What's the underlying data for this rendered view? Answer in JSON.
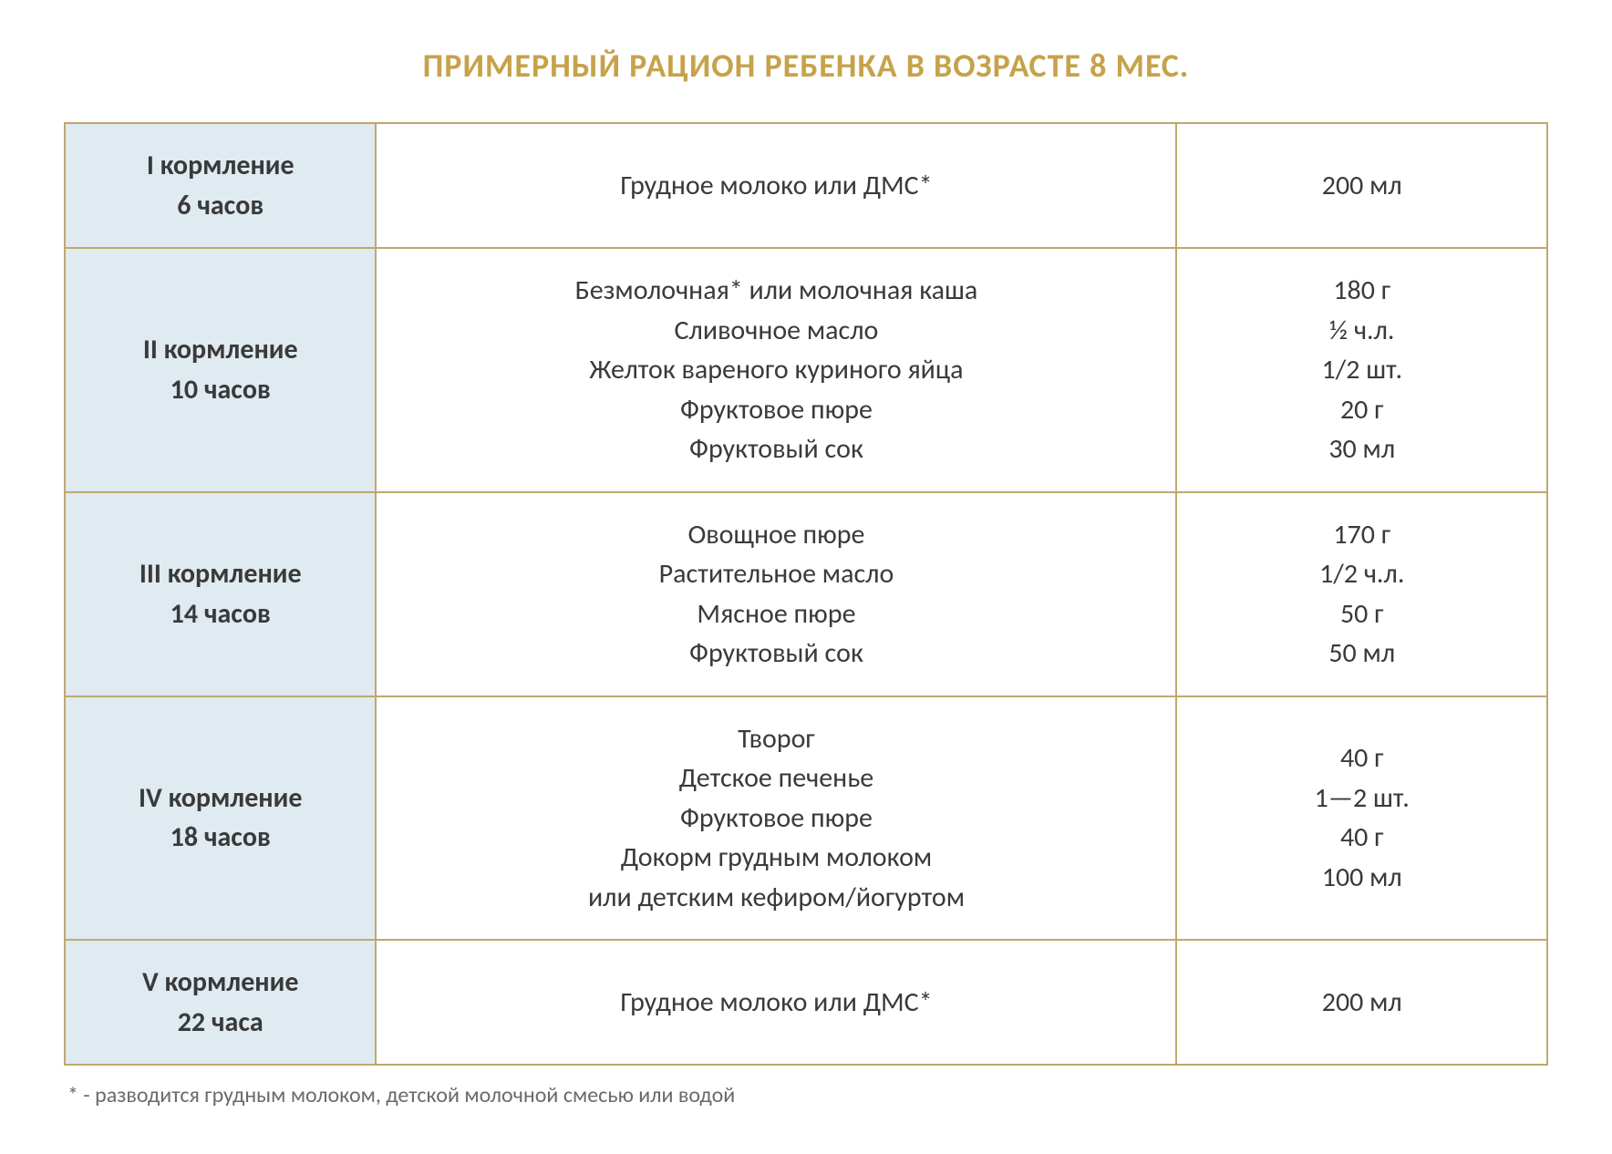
{
  "title": "ПРИМЕРНЫЙ РАЦИОН РЕБЕНКА В ВОЗРАСТЕ 8 МЕС.",
  "colors": {
    "title_color": "#c6a24a",
    "border_color": "#c0a86e",
    "first_col_bg": "#dfeaf1",
    "text_color": "#3a3a3a",
    "footnote_color": "#6a6a6a",
    "background": "#ffffff"
  },
  "table": {
    "columns": [
      "time",
      "food",
      "amount"
    ],
    "column_widths_pct": [
      21,
      54,
      25
    ],
    "rows": [
      {
        "time": [
          "I кормление",
          "6 часов"
        ],
        "food": [
          "Грудное молоко или ДМС*"
        ],
        "amount": [
          "200 мл"
        ]
      },
      {
        "time": [
          "II кормление",
          "10 часов"
        ],
        "food": [
          "Безмолочная* или молочная каша",
          "Сливочное масло",
          "Желток вареного куриного яйца",
          "Фруктовое пюре",
          "Фруктовый сок"
        ],
        "amount": [
          "180 г",
          "½  ч.л.",
          "1/2 шт.",
          "20 г",
          "30 мл"
        ]
      },
      {
        "time": [
          "III кормление",
          "14 часов"
        ],
        "food": [
          "Овощное пюре",
          "Растительное масло",
          "Мясное пюре",
          "Фруктовый сок"
        ],
        "amount": [
          "170 г",
          "1/2 ч.л.",
          "50 г",
          "50 мл"
        ]
      },
      {
        "time": [
          "IV кормление",
          "18 часов"
        ],
        "food": [
          "Творог",
          "Детское печенье",
          "Фруктовое пюре",
          "Докорм грудным молоком",
          "или детским кефиром/йогуртом"
        ],
        "amount": [
          "40 г",
          "1—2 шт.",
          "40 г",
          "100 мл"
        ]
      },
      {
        "time": [
          "V кормление",
          "22 часа"
        ],
        "food": [
          "Грудное молоко или ДМС*"
        ],
        "amount": [
          "200 мл"
        ]
      }
    ]
  },
  "footnote": "* - разводится грудным молоком, детской молочной смесью или водой"
}
